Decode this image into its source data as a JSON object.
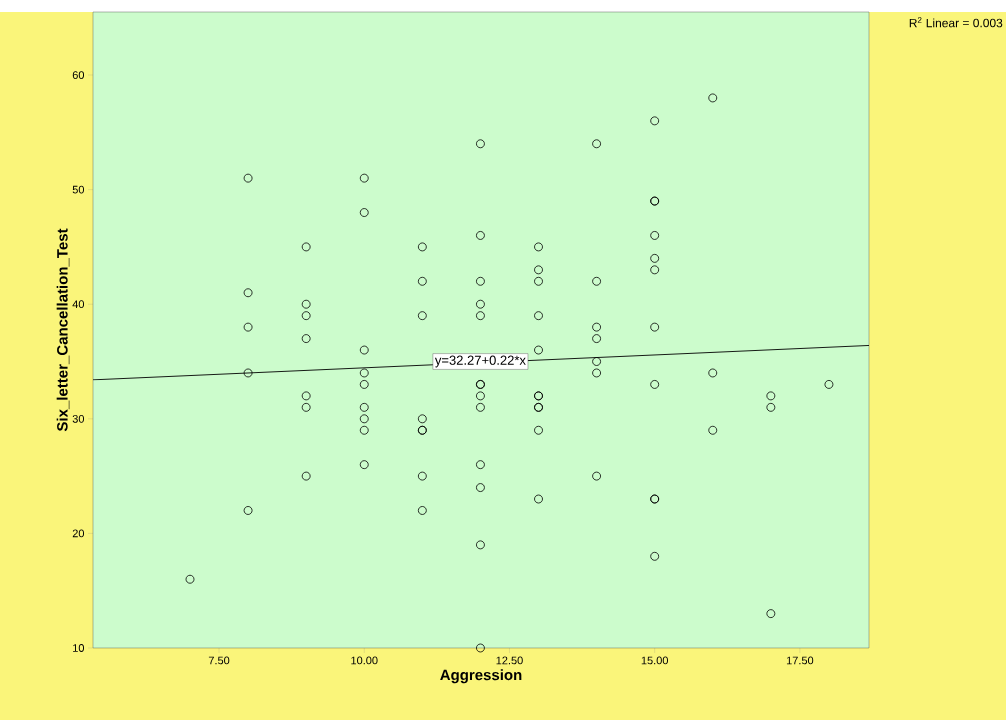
{
  "chart_data": {
    "type": "scatter",
    "xlabel": "Aggression",
    "ylabel": "Six_letter_Cancellation_Test",
    "xlim": [
      5.33,
      18.69
    ],
    "ylim": [
      10,
      65.5
    ],
    "xticks": [
      {
        "value": 7.5,
        "label": "7.50"
      },
      {
        "value": 10,
        "label": "10.00"
      },
      {
        "value": 12.5,
        "label": "12.50"
      },
      {
        "value": 15,
        "label": "15.00"
      },
      {
        "value": 17.5,
        "label": "17.50"
      }
    ],
    "yticks": [
      10,
      20,
      30,
      40,
      50,
      60
    ],
    "marker": "circle",
    "grid": false,
    "series": [
      {
        "color": "#000000",
        "x": [
          7,
          8,
          8,
          8,
          8,
          8,
          9,
          9,
          9,
          9,
          9,
          9,
          9,
          10,
          10,
          10,
          10,
          10,
          10,
          10,
          10,
          10,
          11,
          11,
          11,
          11,
          11,
          11,
          11,
          11,
          12,
          12,
          12,
          12,
          12,
          12,
          12,
          12,
          12,
          12,
          12,
          12,
          12,
          13,
          13,
          13,
          13,
          13,
          13,
          13,
          13,
          13,
          13,
          13,
          14,
          14,
          14,
          14,
          14,
          14,
          14,
          15,
          15,
          15,
          15,
          15,
          15,
          15,
          15,
          15,
          15,
          15,
          16,
          16,
          16,
          17,
          17,
          17,
          18
        ],
        "values": [
          16,
          51,
          41,
          38,
          34,
          22,
          45,
          40,
          39,
          37,
          32,
          31,
          25,
          51,
          48,
          36,
          34,
          33,
          31,
          30,
          29,
          26,
          45,
          42,
          39,
          30,
          29,
          29,
          25,
          22,
          54,
          46,
          42,
          40,
          39,
          33,
          33,
          32,
          31,
          26,
          24,
          19,
          10,
          45,
          43,
          42,
          39,
          36,
          32,
          32,
          31,
          31,
          29,
          23,
          54,
          42,
          38,
          37,
          35,
          34,
          25,
          56,
          49,
          49,
          46,
          44,
          43,
          38,
          33,
          23,
          23,
          18,
          58,
          34,
          29,
          32,
          31,
          13,
          33
        ]
      },
      {
        "type": "line",
        "color": "#000000",
        "marker": "none",
        "x": [
          5.33,
          18.69
        ],
        "values": [
          33.4,
          36.4
        ]
      }
    ],
    "annotations": [
      {
        "text": "y=32.27+0.22*x",
        "x": 12,
        "y": 35
      },
      "R$^{2}$ Linear = 0.003"
    ]
  }
}
